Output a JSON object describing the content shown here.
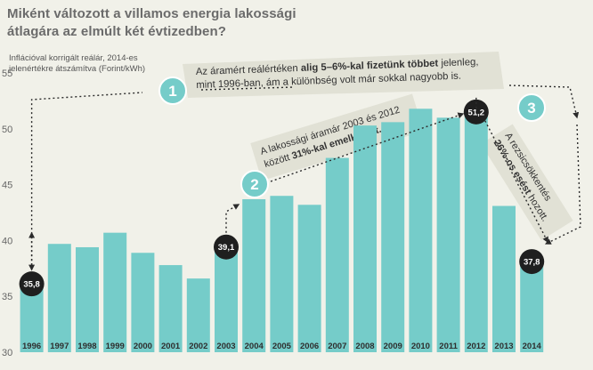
{
  "chart_data": {
    "type": "bar",
    "title": "Miként változott a villamos energia lakossági átlagára az elmúlt két évtizedben?",
    "title_lines": [
      "Miként változott a villamos energia lakossági",
      "átlagára az elmúlt két évtizedben?"
    ],
    "ylabel_lines": [
      "Inflációval korrigált reálár, 2014-es",
      "jelenértékre átszámítva (Forint/kWh)"
    ],
    "categories": [
      "1996",
      "1997",
      "1998",
      "1999",
      "2000",
      "2001",
      "2002",
      "2003",
      "2004",
      "2005",
      "2006",
      "2007",
      "2008",
      "2009",
      "2010",
      "2011",
      "2012",
      "2013",
      "2014"
    ],
    "values": [
      35.8,
      39.7,
      39.4,
      40.7,
      38.9,
      37.8,
      36.6,
      39.1,
      43.7,
      44.0,
      43.2,
      47.4,
      50.3,
      50.6,
      51.8,
      51.0,
      51.2,
      43.1,
      37.8
    ],
    "ylim": [
      30,
      57
    ],
    "yticks": [
      30,
      35,
      40,
      45,
      50,
      55
    ],
    "grid": false,
    "bar_color": "#75ccc9",
    "highlight_labels": [
      {
        "category": "1996",
        "label": "35,8"
      },
      {
        "category": "2003",
        "label": "39,1"
      },
      {
        "category": "2012",
        "label": "51,2"
      },
      {
        "category": "2014",
        "label": "37,8"
      }
    ],
    "annotations": [
      {
        "number": "1",
        "lines": [
          [
            {
              "t": "Az áramért reálértéken ",
              "b": false
            },
            {
              "t": "alig 5–6%-kal fizetünk többet",
              "b": true
            },
            {
              "t": " jelenleg,",
              "b": false
            }
          ],
          [
            {
              "t": "mint 1996-ban, ám a különbség volt már sokkal nagyobb is.",
              "b": false
            }
          ]
        ]
      },
      {
        "number": "2",
        "lines": [
          [
            {
              "t": "A lakossági áramár 2003 és 2012",
              "b": false
            }
          ],
          [
            {
              "t": "között ",
              "b": false
            },
            {
              "t": "31%-kal emelkedett.",
              "b": true
            }
          ]
        ]
      },
      {
        "number": "3",
        "lines": [
          [
            {
              "t": "A rezsicsökkentés",
              "b": false
            }
          ],
          [
            {
              "t": "26%-os esést",
              "b": true
            },
            {
              "t": " hozott.",
              "b": false
            }
          ]
        ]
      }
    ]
  }
}
